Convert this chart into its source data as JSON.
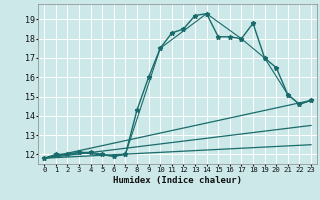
{
  "title": "",
  "xlabel": "Humidex (Indice chaleur)",
  "background_color": "#cce8e8",
  "grid_color": "#ffffff",
  "line_color": "#1a6b6b",
  "xlim": [
    -0.5,
    23.5
  ],
  "ylim": [
    11.5,
    19.8
  ],
  "xticks": [
    0,
    1,
    2,
    3,
    4,
    5,
    6,
    7,
    8,
    9,
    10,
    11,
    12,
    13,
    14,
    15,
    16,
    17,
    18,
    19,
    20,
    21,
    22,
    23
  ],
  "yticks": [
    12,
    13,
    14,
    15,
    16,
    17,
    18,
    19
  ],
  "series": [
    {
      "x": [
        0,
        1,
        2,
        3,
        4,
        5,
        6,
        7,
        8,
        9,
        10,
        11,
        12,
        13,
        14,
        15,
        16,
        17,
        18,
        19,
        20,
        21,
        22,
        23
      ],
      "y": [
        11.8,
        12.0,
        12.0,
        12.1,
        12.1,
        12.0,
        11.9,
        12.0,
        14.3,
        16.0,
        17.5,
        18.3,
        18.5,
        19.2,
        19.3,
        18.1,
        18.1,
        18.0,
        18.8,
        17.0,
        16.5,
        15.1,
        14.6,
        14.8
      ],
      "marker": "*",
      "markersize": 3.5,
      "linewidth": 1.0
    },
    {
      "x": [
        0,
        3,
        6,
        7,
        10,
        14,
        17,
        19,
        21,
        22,
        23
      ],
      "y": [
        11.8,
        12.1,
        11.9,
        12.0,
        17.5,
        19.3,
        18.0,
        17.0,
        15.1,
        14.6,
        14.8
      ],
      "marker": "+",
      "markersize": 3,
      "linewidth": 0.8
    },
    {
      "x": [
        0,
        23
      ],
      "y": [
        11.8,
        14.8
      ],
      "marker": null,
      "markersize": 0,
      "linewidth": 0.9
    },
    {
      "x": [
        0,
        23
      ],
      "y": [
        11.8,
        13.5
      ],
      "marker": null,
      "markersize": 0,
      "linewidth": 0.9
    },
    {
      "x": [
        0,
        23
      ],
      "y": [
        11.8,
        12.5
      ],
      "marker": null,
      "markersize": 0,
      "linewidth": 0.9
    }
  ]
}
